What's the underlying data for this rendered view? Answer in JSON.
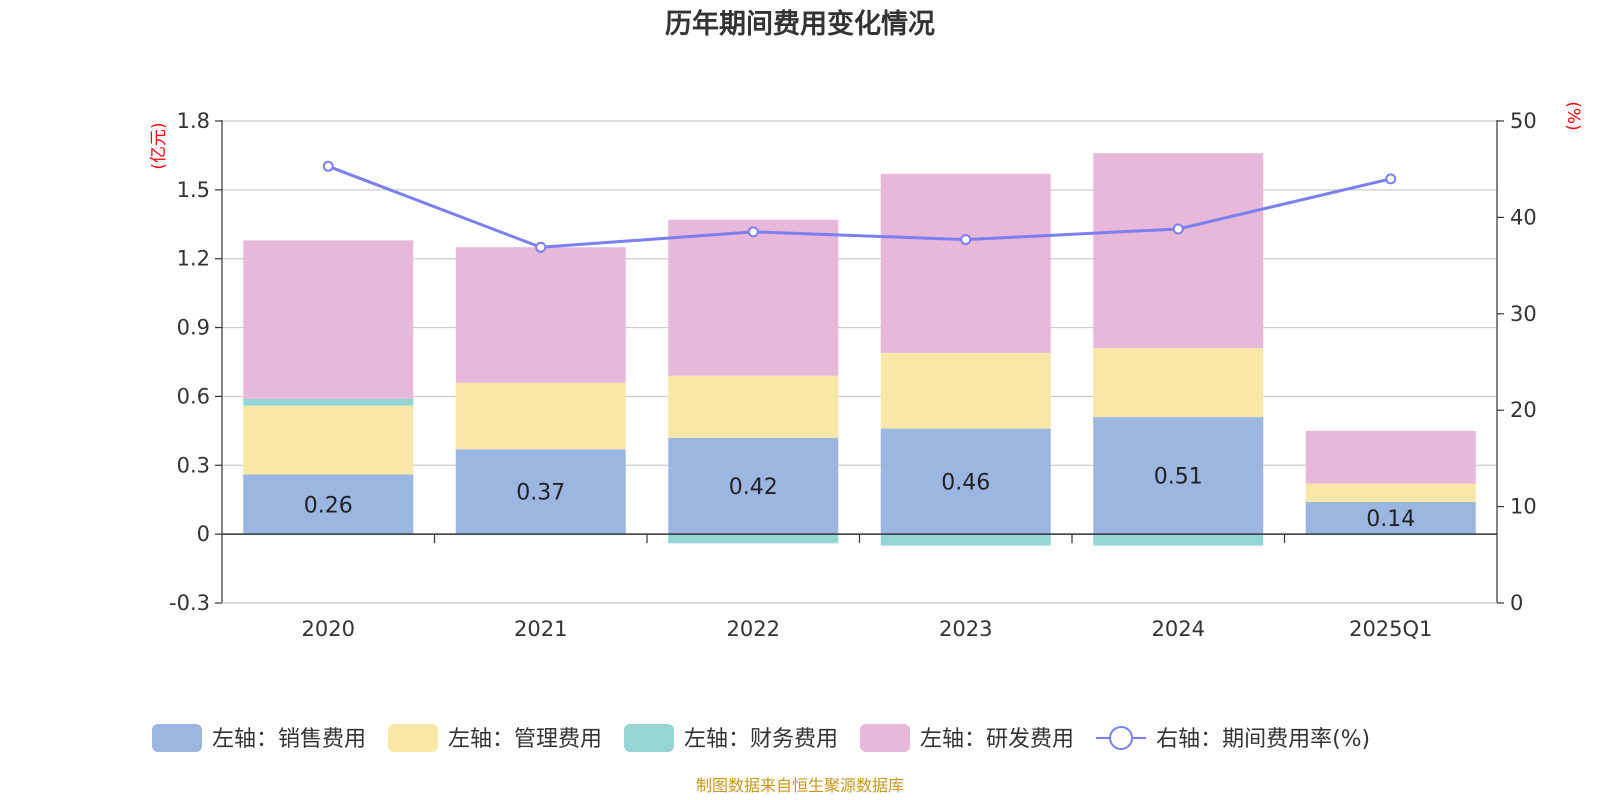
{
  "chart_data": {
    "type": "bar",
    "title": "历年期间费用变化情况",
    "categories": [
      "2020",
      "2021",
      "2022",
      "2023",
      "2024",
      "2025Q1"
    ],
    "left_axis": {
      "unit": "(亿元)",
      "ylim": [
        -0.3,
        1.8
      ],
      "ticks": [
        -0.3,
        0,
        0.3,
        0.6,
        0.9,
        1.2,
        1.5,
        1.8
      ]
    },
    "right_axis": {
      "unit": "(%)",
      "ylim": [
        0,
        50
      ],
      "ticks": [
        0,
        10,
        20,
        30,
        40,
        50
      ]
    },
    "series": [
      {
        "name": "左轴：销售费用",
        "type": "bar",
        "axis": "left",
        "color": "#9bb7e1",
        "values": [
          0.26,
          0.37,
          0.42,
          0.46,
          0.51,
          0.14
        ],
        "labels": [
          "0.26",
          "0.37",
          "0.42",
          "0.46",
          "0.51",
          "0.14"
        ]
      },
      {
        "name": "左轴：管理费用",
        "type": "bar",
        "axis": "left",
        "color": "#f8e7a6",
        "values": [
          0.3,
          0.29,
          0.27,
          0.33,
          0.3,
          0.08
        ]
      },
      {
        "name": "左轴：财务费用",
        "type": "bar",
        "axis": "left",
        "color": "#95d5d4",
        "values": [
          0.03,
          0.0,
          -0.04,
          -0.05,
          -0.05,
          0.0
        ]
      },
      {
        "name": "左轴：研发费用",
        "type": "bar",
        "axis": "left",
        "color": "#e7b8d9",
        "values": [
          0.69,
          0.59,
          0.68,
          0.78,
          0.85,
          0.23
        ]
      },
      {
        "name": "右轴：期间费用率(%)",
        "type": "line",
        "axis": "right",
        "color": "#7b7ff0",
        "values": [
          45.3,
          36.9,
          38.5,
          37.7,
          38.8,
          44.0
        ]
      }
    ]
  },
  "footer": {
    "source": "制图数据来自恒生聚源数据库"
  }
}
